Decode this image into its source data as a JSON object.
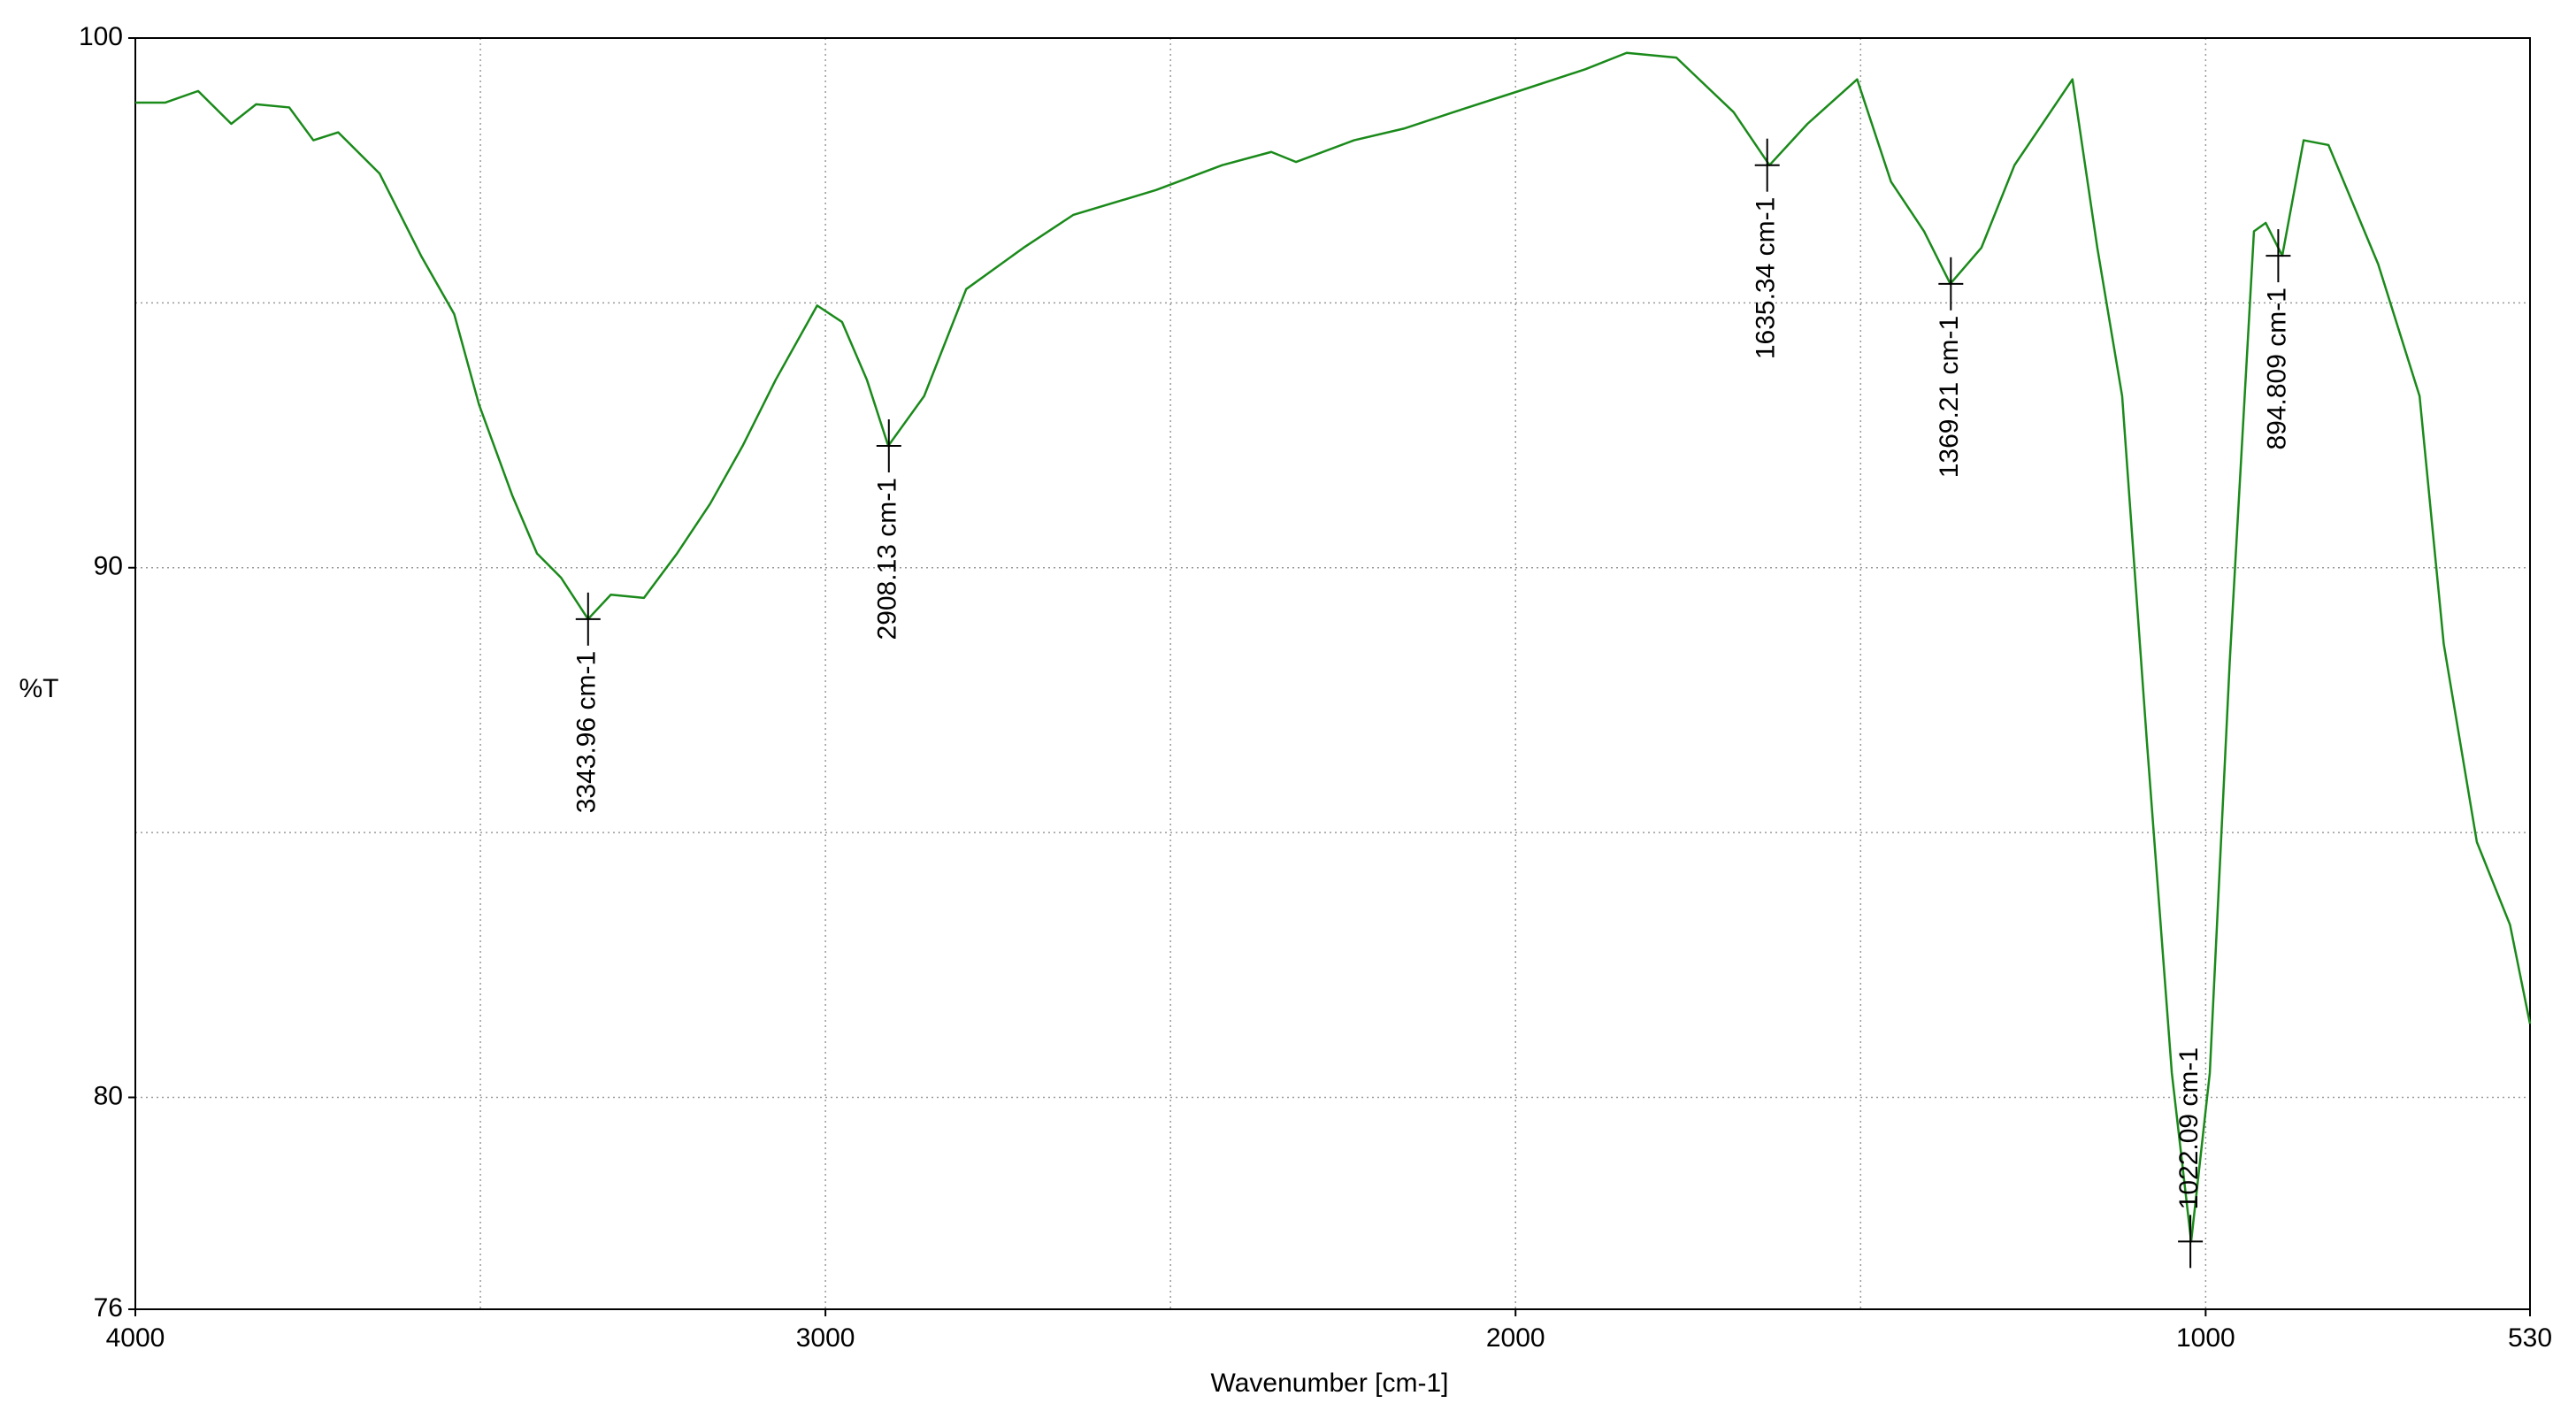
{
  "chart_data": {
    "type": "line",
    "xlabel": "Wavenumber [cm-1]",
    "ylabel": "%T",
    "xlim": [
      4000,
      530
    ],
    "ylim": [
      76,
      100
    ],
    "xticks": [
      4000,
      3000,
      2000,
      1000,
      530
    ],
    "yticks": [
      76,
      80,
      90,
      100
    ],
    "xgrid": [
      3500,
      3000,
      2500,
      2000,
      1500,
      1000
    ],
    "ygrid": [
      80,
      85,
      90,
      95
    ],
    "grid": true,
    "series": [
      {
        "color": "#1a8a1a",
        "x": [
          4000,
          3957,
          3909,
          3861,
          3825,
          3777,
          3742,
          3706,
          3646,
          3586,
          3538,
          3502,
          3454,
          3418,
          3383,
          3344,
          3311,
          3263,
          3215,
          3167,
          3120,
          3072,
          3012,
          2976,
          2940,
          2909,
          2857,
          2796,
          2713,
          2641,
          2521,
          2425,
          2354,
          2318,
          2234,
          2162,
          2090,
          1995,
          1899,
          1839,
          1767,
          1684,
          1632,
          1577,
          1505,
          1456,
          1408,
          1370,
          1325,
          1277,
          1193,
          1157,
          1121,
          1085,
          1049,
          1021,
          994,
          965,
          930,
          913,
          889,
          858,
          822,
          750,
          690,
          655,
          607,
          559,
          530
        ],
        "values": [
          98.78,
          98.78,
          99.0,
          98.38,
          98.75,
          98.69,
          98.07,
          98.22,
          97.44,
          95.89,
          94.79,
          93.08,
          91.37,
          90.27,
          89.81,
          89.03,
          89.49,
          89.43,
          90.27,
          91.21,
          92.3,
          93.55,
          94.95,
          94.64,
          93.55,
          92.3,
          93.24,
          95.26,
          96.04,
          96.66,
          97.13,
          97.6,
          97.85,
          97.66,
          98.07,
          98.29,
          98.6,
          99.0,
          99.41,
          99.72,
          99.63,
          98.6,
          97.6,
          98.38,
          99.22,
          97.29,
          96.35,
          95.36,
          96.04,
          97.6,
          99.22,
          96.04,
          93.24,
          86.69,
          80.46,
          77.28,
          80.46,
          88.25,
          96.35,
          96.51,
          95.89,
          98.07,
          97.98,
          95.73,
          93.24,
          88.56,
          84.82,
          83.26,
          81.39
        ]
      }
    ],
    "annotations": [
      {
        "label": "3343.96 cm-1",
        "x": 3343.96,
        "y": 89.03
      },
      {
        "label": "2908.13 cm-1",
        "x": 2908.13,
        "y": 92.3
      },
      {
        "label": "1635.34 cm-1",
        "x": 1635.34,
        "y": 97.6
      },
      {
        "label": "1369.21 cm-1",
        "x": 1369.21,
        "y": 95.36
      },
      {
        "label": "1022.09 cm-1",
        "x": 1022.09,
        "y": 77.28
      },
      {
        "label": "894.809 cm-1",
        "x": 894.809,
        "y": 95.89
      }
    ]
  }
}
